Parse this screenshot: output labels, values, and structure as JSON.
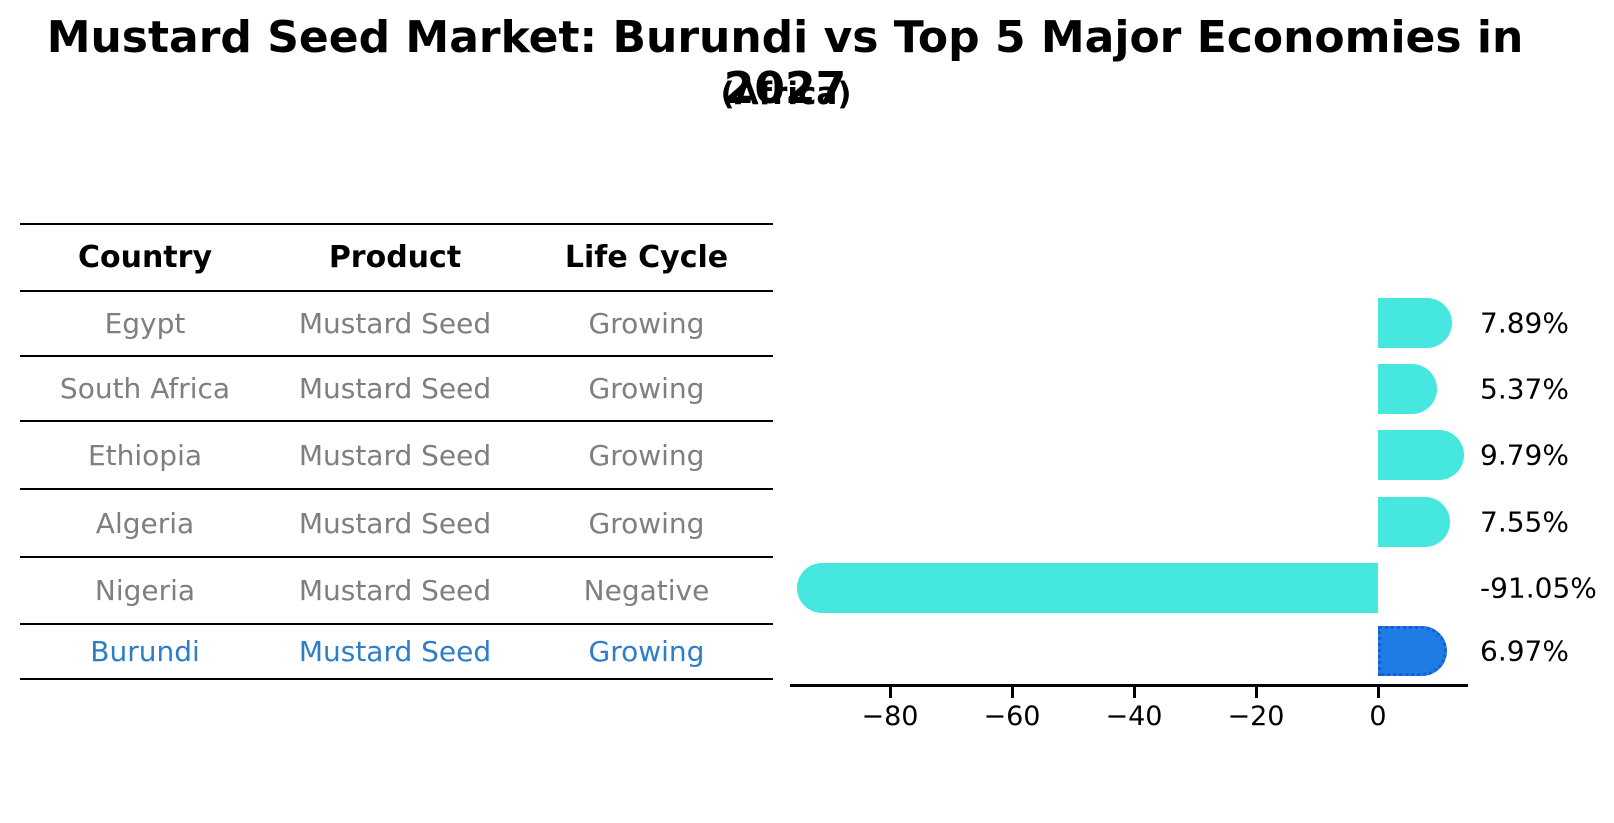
{
  "title": "Mustard Seed Market: Burundi vs Top 5 Major Economies in 2027",
  "subtitle": "(Africa)",
  "table": {
    "headers": {
      "country": "Country",
      "product": "Product",
      "life_cycle": "Life Cycle"
    },
    "rows": [
      {
        "country": "Egypt",
        "product": "Mustard Seed",
        "life_cycle": "Growing"
      },
      {
        "country": "South Africa",
        "product": "Mustard Seed",
        "life_cycle": "Growing"
      },
      {
        "country": "Ethiopia",
        "product": "Mustard Seed",
        "life_cycle": "Growing"
      },
      {
        "country": "Algeria",
        "product": "Mustard Seed",
        "life_cycle": "Growing"
      },
      {
        "country": "Nigeria",
        "product": "Mustard Seed",
        "life_cycle": "Negative"
      },
      {
        "country": "Burundi",
        "product": "Mustard Seed",
        "life_cycle": "Growing"
      }
    ]
  },
  "chart_data": {
    "type": "bar",
    "orientation": "horizontal",
    "categories": [
      "Egypt",
      "South Africa",
      "Ethiopia",
      "Algeria",
      "Nigeria",
      "Burundi"
    ],
    "values": [
      7.89,
      5.37,
      9.79,
      7.55,
      -91.05,
      6.97
    ],
    "value_labels": [
      "7.89%",
      "5.37%",
      "9.79%",
      "7.55%",
      "-91.05%",
      "6.97%"
    ],
    "highlight_category": "Burundi",
    "highlight_index": 5,
    "title": "Mustard Seed Market: Burundi vs Top 5 Major Economies in 2027",
    "subtitle": "(Africa)",
    "xlabel": "",
    "ylabel": "",
    "xticks": [
      -80,
      -60,
      -40,
      -20,
      0
    ],
    "xtick_labels": [
      "−80",
      "−60",
      "−40",
      "−20",
      "0"
    ],
    "xlim": [
      -96.5,
      14.8
    ],
    "grid": false,
    "legend": "none",
    "bar_color": "#45E7DF",
    "highlight_bar_color": "#1E7CE4",
    "highlight_bar_edge_color": "#1560D0",
    "highlight_text_color": "#2E7DC9",
    "text_color": "#7f7f7f",
    "axis_color": "#000000"
  }
}
